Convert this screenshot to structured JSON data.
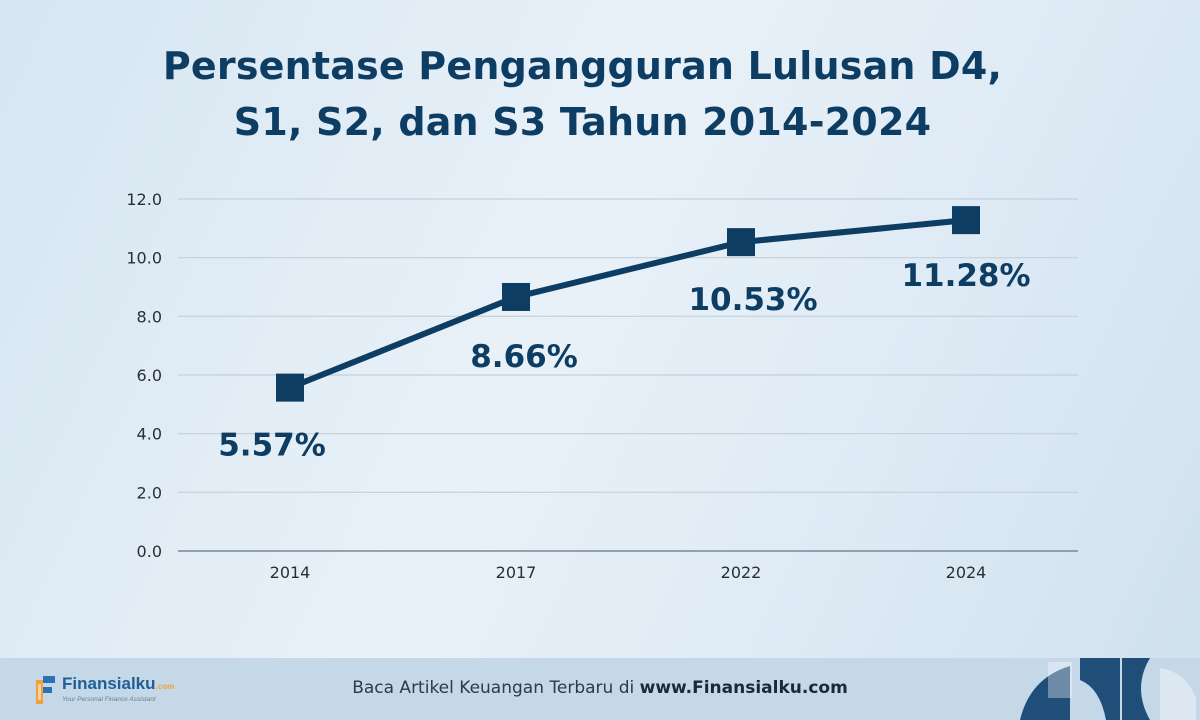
{
  "title": {
    "line1": "Persentase Pengangguran Lulusan D4,",
    "line2": "S1, S2, dan S3 Tahun 2014-2024"
  },
  "chart_data": {
    "type": "line",
    "title": "Persentase Pengangguran Lulusan D4, S1, S2, dan S3 Tahun 2014-2024",
    "categories": [
      "2014",
      "2017",
      "2022",
      "2024"
    ],
    "values": [
      5.57,
      8.66,
      10.53,
      11.28
    ],
    "data_labels": [
      "5.57%",
      "8.66%",
      "10.53%",
      "11.28%"
    ],
    "ylim": [
      0,
      12
    ],
    "yticks": [
      "0.0",
      "2.0",
      "4.0",
      "6.0",
      "8.0",
      "10.0",
      "12.0"
    ],
    "xlabel": "",
    "ylabel": "",
    "grid": true,
    "colors": {
      "line": "#0d3d63",
      "grid": "#c4cfd9",
      "axis": "#7a8794",
      "label": "#0d3d63",
      "tick": "#2b2f33"
    }
  },
  "footer": {
    "brand_name": "Finansialku",
    "brand_suffix": ".com",
    "brand_tagline": "Your Personal Finance Assistant",
    "text_prefix": "Baca Artikel Keuangan Terbaru di",
    "text_link": "www.Finansialku.com",
    "colors": {
      "background": "#c5d8e8",
      "deco": "#1f4e79"
    }
  }
}
